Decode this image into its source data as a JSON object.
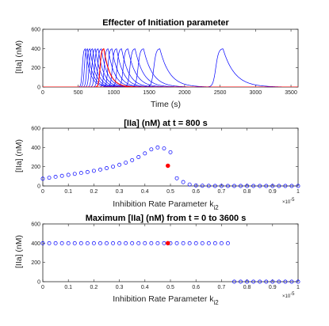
{
  "chart_data": [
    {
      "type": "line",
      "title": "Effecter of Initiation parameter",
      "xlabel": "Time (s)",
      "ylabel": "[IIa] (nM)",
      "xlim": [
        0,
        3600
      ],
      "ylim": [
        0,
        600
      ],
      "xticks": [
        "0",
        "500",
        "1000",
        "1500",
        "2000",
        "2500",
        "3000",
        "3500"
      ],
      "yticks": [
        "0",
        "200",
        "400",
        "600"
      ],
      "colors": {
        "family": "#0000ff",
        "highlight": "#ff0000"
      },
      "series": [
        {
          "peak_time": 600,
          "peak": 400,
          "width": 60
        },
        {
          "peak_time": 630,
          "peak": 400,
          "width": 62
        },
        {
          "peak_time": 665,
          "peak": 400,
          "width": 64
        },
        {
          "peak_time": 700,
          "peak": 400,
          "width": 66
        },
        {
          "peak_time": 740,
          "peak": 400,
          "width": 68
        },
        {
          "peak_time": 780,
          "peak": 400,
          "width": 70
        },
        {
          "peak_time": 825,
          "peak": 400,
          "width": 72
        },
        {
          "peak_time": 860,
          "peak": 400,
          "width": 74,
          "highlight": true
        },
        {
          "peak_time": 920,
          "peak": 400,
          "width": 76
        },
        {
          "peak_time": 975,
          "peak": 400,
          "width": 80
        },
        {
          "peak_time": 1040,
          "peak": 400,
          "width": 84
        },
        {
          "peak_time": 1110,
          "peak": 400,
          "width": 88
        },
        {
          "peak_time": 1200,
          "peak": 400,
          "width": 94
        },
        {
          "peak_time": 1300,
          "peak": 400,
          "width": 100
        },
        {
          "peak_time": 1420,
          "peak": 400,
          "width": 108
        },
        {
          "peak_time": 1650,
          "peak": 400,
          "width": 118
        },
        {
          "peak_time": 2540,
          "peak": 400,
          "width": 140
        }
      ]
    },
    {
      "type": "scatter",
      "title": "[IIa] (nM) at t = 800 s",
      "xlabel": "Inhibition Rate Parameter k",
      "xlabel_sub": "i2",
      "ylabel": "[IIa] (nM)",
      "xlim": [
        0,
        1
      ],
      "ylim": [
        0,
        600
      ],
      "xticks": [
        "0",
        "0.1",
        "0.2",
        "0.3",
        "0.4",
        "0.5",
        "0.6",
        "0.7",
        "0.8",
        "0.9",
        "1"
      ],
      "yticks": [
        "0",
        "200",
        "400",
        "600"
      ],
      "x_multiplier": "×10",
      "x_multiplier_exp": "-5",
      "colors": {
        "marker": "#0000ff",
        "highlight": "#ff0000"
      },
      "x": [
        0,
        0.025,
        0.05,
        0.075,
        0.1,
        0.125,
        0.15,
        0.175,
        0.2,
        0.225,
        0.25,
        0.275,
        0.3,
        0.325,
        0.35,
        0.375,
        0.4,
        0.425,
        0.45,
        0.475,
        0.5,
        0.525,
        0.55,
        0.575,
        0.6,
        0.625,
        0.65,
        0.675,
        0.7,
        0.725,
        0.75,
        0.775,
        0.8,
        0.825,
        0.85,
        0.875,
        0.9,
        0.925,
        0.95,
        0.975,
        1
      ],
      "y": [
        75,
        85,
        95,
        105,
        115,
        125,
        135,
        145,
        157,
        170,
        185,
        200,
        220,
        242,
        268,
        300,
        338,
        380,
        400,
        390,
        350,
        80,
        40,
        15,
        5,
        2,
        1,
        0,
        0,
        0,
        0,
        0,
        0,
        0,
        0,
        0,
        0,
        0,
        0,
        0,
        0
      ],
      "highlight": {
        "x": 0.49,
        "y": 210
      }
    },
    {
      "type": "scatter",
      "title": "Maximum [IIa] (nM) from t = 0 to 3600 s",
      "xlabel": "Inhibition Rate Parameter k",
      "xlabel_sub": "i2",
      "ylabel": "[IIa] (nM)",
      "xlim": [
        0,
        1
      ],
      "ylim": [
        0,
        600
      ],
      "xticks": [
        "0",
        "0.1",
        "0.2",
        "0.3",
        "0.4",
        "0.5",
        "0.6",
        "0.7",
        "0.8",
        "0.9",
        "1"
      ],
      "yticks": [
        "0",
        "200",
        "400",
        "600"
      ],
      "x_multiplier": "×10",
      "x_multiplier_exp": "-5",
      "colors": {
        "marker": "#0000ff",
        "highlight": "#ff0000"
      },
      "x": [
        0,
        0.025,
        0.05,
        0.075,
        0.1,
        0.125,
        0.15,
        0.175,
        0.2,
        0.225,
        0.25,
        0.275,
        0.3,
        0.325,
        0.35,
        0.375,
        0.4,
        0.425,
        0.45,
        0.475,
        0.5,
        0.525,
        0.55,
        0.575,
        0.6,
        0.625,
        0.65,
        0.675,
        0.7,
        0.725,
        0.75,
        0.775,
        0.8,
        0.825,
        0.85,
        0.875,
        0.9,
        0.925,
        0.95,
        0.975,
        1
      ],
      "y": [
        400,
        400,
        400,
        400,
        400,
        400,
        400,
        400,
        400,
        400,
        400,
        400,
        400,
        400,
        400,
        400,
        400,
        400,
        400,
        400,
        400,
        400,
        400,
        400,
        400,
        400,
        400,
        400,
        400,
        400,
        0,
        0,
        0,
        0,
        0,
        0,
        0,
        0,
        0,
        0,
        0
      ],
      "highlight": {
        "x": 0.49,
        "y": 400
      }
    }
  ]
}
